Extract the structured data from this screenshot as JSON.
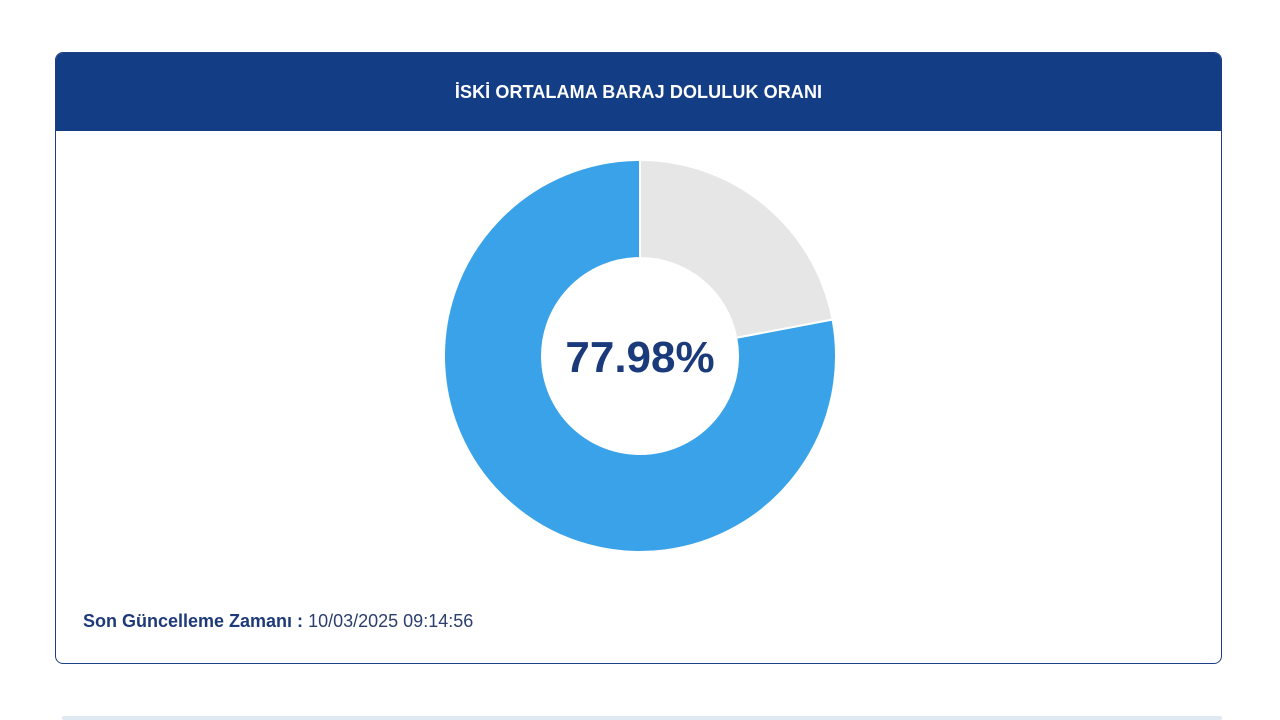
{
  "card": {
    "title": "İSKİ ORTALAMA BARAJ DOLULUK ORANI"
  },
  "chart_data": {
    "type": "pie",
    "center_label": "77.98%",
    "slices": [
      {
        "value": 77.98,
        "color": "#3aa2e8"
      },
      {
        "value": 22.02,
        "color": "#e6e6e6"
      }
    ]
  },
  "footer": {
    "label": "Son Güncelleme Zamanı :",
    "value": "10/03/2025 09:14:56"
  },
  "colors": {
    "header": "#133d85",
    "accent": "#3aa2e8",
    "remainder": "#e6e6e6",
    "text_dark": "#1a3a7c"
  }
}
